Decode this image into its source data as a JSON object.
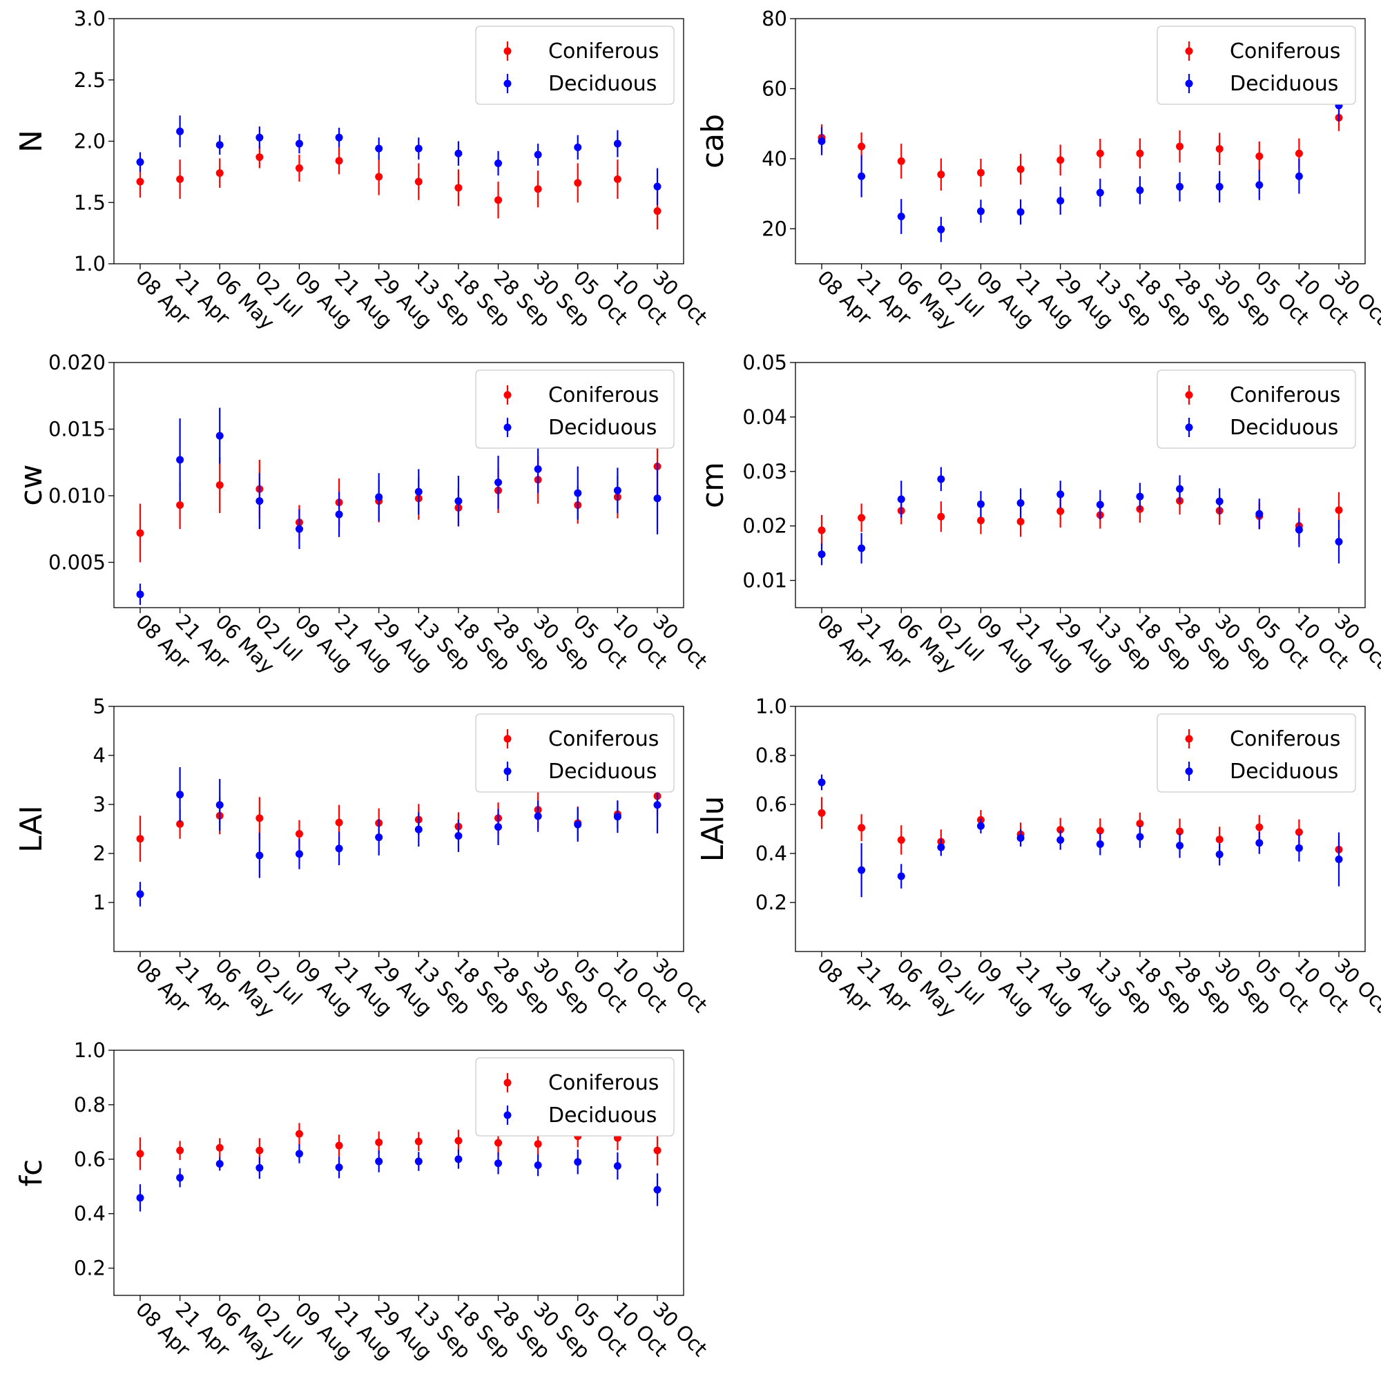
{
  "colors": {
    "coniferous": "#ff0000",
    "deciduous": "#0000ff"
  },
  "chart_data": [
    {
      "type": "scatter",
      "title": "",
      "xlabel": "",
      "ylabel": "N",
      "categories": [
        "08 Apr",
        "21 Apr",
        "06 May",
        "02 Jul",
        "09 Aug",
        "21 Aug",
        "29 Aug",
        "13 Sep",
        "18 Sep",
        "28 Sep",
        "30 Sep",
        "05 Oct",
        "10 Oct",
        "30 Oct"
      ],
      "ylim": [
        1.0,
        3.0
      ],
      "yticks": [
        1.0,
        1.5,
        2.0,
        2.5,
        3.0
      ],
      "ytick_labels": [
        "1.0",
        "1.5",
        "2.0",
        "2.5",
        "3.0"
      ],
      "legend": [
        "Coniferous",
        "Deciduous"
      ],
      "legend_position": "top-right",
      "series": [
        {
          "name": "Coniferous",
          "values": [
            1.67,
            1.69,
            1.74,
            1.87,
            1.78,
            1.84,
            1.71,
            1.67,
            1.62,
            1.52,
            1.61,
            1.66,
            1.69,
            1.43
          ],
          "errors": [
            0.13,
            0.16,
            0.12,
            0.09,
            0.11,
            0.11,
            0.15,
            0.15,
            0.15,
            0.15,
            0.15,
            0.16,
            0.16,
            0.15
          ]
        },
        {
          "name": "Deciduous",
          "values": [
            1.83,
            2.08,
            1.97,
            2.03,
            1.98,
            2.03,
            1.94,
            1.94,
            1.9,
            1.82,
            1.89,
            1.95,
            1.98,
            1.63
          ],
          "errors": [
            0.08,
            0.13,
            0.08,
            0.09,
            0.08,
            0.08,
            0.09,
            0.09,
            0.1,
            0.1,
            0.09,
            0.1,
            0.11,
            0.15
          ]
        }
      ]
    },
    {
      "type": "scatter",
      "title": "",
      "xlabel": "",
      "ylabel": "cab",
      "categories": [
        "08 Apr",
        "21 Apr",
        "06 May",
        "02 Jul",
        "09 Aug",
        "21 Aug",
        "29 Aug",
        "13 Sep",
        "18 Sep",
        "28 Sep",
        "30 Sep",
        "05 Oct",
        "10 Oct",
        "30 Oct"
      ],
      "ylim": [
        10,
        80
      ],
      "yticks": [
        20,
        40,
        60,
        80
      ],
      "ytick_labels": [
        "20",
        "40",
        "60",
        "80"
      ],
      "legend": [
        "Coniferous",
        "Deciduous"
      ],
      "legend_position": "top-right",
      "series": [
        {
          "name": "Coniferous",
          "values": [
            46.0,
            43.5,
            39.3,
            35.5,
            36.0,
            37.0,
            39.6,
            41.5,
            41.5,
            43.5,
            42.8,
            40.7,
            41.5,
            51.7
          ],
          "errors": [
            3.8,
            4.0,
            5.0,
            4.6,
            4.0,
            4.4,
            4.4,
            4.2,
            4.3,
            4.6,
            4.6,
            4.2,
            4.3,
            3.8
          ]
        },
        {
          "name": "Deciduous",
          "values": [
            45.0,
            35.0,
            23.5,
            19.8,
            25.0,
            24.8,
            28.0,
            30.3,
            31.0,
            32.0,
            32.0,
            32.5,
            35.0,
            55.2
          ],
          "errors": [
            4.0,
            6.0,
            5.0,
            3.6,
            3.3,
            3.6,
            4.0,
            4.0,
            4.0,
            4.2,
            4.5,
            4.3,
            5.0,
            4.5
          ]
        }
      ]
    },
    {
      "type": "scatter",
      "title": "",
      "xlabel": "",
      "ylabel": "cw",
      "categories": [
        "08 Apr",
        "21 Apr",
        "06 May",
        "02 Jul",
        "09 Aug",
        "21 Aug",
        "29 Aug",
        "13 Sep",
        "18 Sep",
        "28 Sep",
        "30 Sep",
        "05 Oct",
        "10 Oct",
        "30 Oct"
      ],
      "ylim": [
        0.0016,
        0.02
      ],
      "yticks": [
        0.005,
        0.01,
        0.015,
        0.02
      ],
      "ytick_labels": [
        "0.005",
        "0.010",
        "0.015",
        "0.020"
      ],
      "legend": [
        "Coniferous",
        "Deciduous"
      ],
      "legend_position": "top-right",
      "series": [
        {
          "name": "Coniferous",
          "values": [
            0.0072,
            0.0093,
            0.0108,
            0.0105,
            0.008,
            0.0095,
            0.0096,
            0.0098,
            0.0091,
            0.0104,
            0.0112,
            0.0093,
            0.0099,
            0.0122
          ],
          "errors": [
            0.0022,
            0.0018,
            0.0021,
            0.0022,
            0.0013,
            0.0018,
            0.0016,
            0.0016,
            0.0014,
            0.0017,
            0.0018,
            0.0014,
            0.0016,
            0.0022
          ]
        },
        {
          "name": "Deciduous",
          "values": [
            0.0026,
            0.0127,
            0.0145,
            0.0096,
            0.0075,
            0.0086,
            0.0099,
            0.0103,
            0.0096,
            0.011,
            0.012,
            0.0102,
            0.0104,
            0.0098
          ],
          "errors": [
            0.0008,
            0.0031,
            0.0021,
            0.0021,
            0.0015,
            0.0017,
            0.0018,
            0.0017,
            0.0019,
            0.002,
            0.0018,
            0.002,
            0.0017,
            0.0027
          ]
        }
      ]
    },
    {
      "type": "scatter",
      "title": "",
      "xlabel": "",
      "ylabel": "cm",
      "categories": [
        "08 Apr",
        "21 Apr",
        "06 May",
        "02 Jul",
        "09 Aug",
        "21 Aug",
        "29 Aug",
        "13 Sep",
        "18 Sep",
        "28 Sep",
        "30 Sep",
        "05 Oct",
        "10 Oct",
        "30 Oct"
      ],
      "ylim": [
        0.005,
        0.05
      ],
      "yticks": [
        0.01,
        0.02,
        0.03,
        0.04,
        0.05
      ],
      "ytick_labels": [
        "0.01",
        "0.02",
        "0.03",
        "0.04",
        "0.05"
      ],
      "legend": [
        "Coniferous",
        "Deciduous"
      ],
      "legend_position": "top-right",
      "series": [
        {
          "name": "Coniferous",
          "values": [
            0.0192,
            0.0215,
            0.0228,
            0.0217,
            0.021,
            0.0208,
            0.0227,
            0.022,
            0.0231,
            0.0246,
            0.0228,
            0.0218,
            0.02,
            0.0229
          ],
          "errors": [
            0.0028,
            0.0026,
            0.0025,
            0.0028,
            0.0025,
            0.0028,
            0.003,
            0.0025,
            0.0025,
            0.0025,
            0.0026,
            0.0024,
            0.0033,
            0.0033
          ]
        },
        {
          "name": "Deciduous",
          "values": [
            0.0148,
            0.0159,
            0.0249,
            0.0286,
            0.024,
            0.0242,
            0.0258,
            0.0239,
            0.0254,
            0.0268,
            0.0245,
            0.0222,
            0.0193,
            0.0171
          ],
          "errors": [
            0.002,
            0.0028,
            0.0034,
            0.0022,
            0.0024,
            0.0027,
            0.0025,
            0.0027,
            0.0025,
            0.0025,
            0.0024,
            0.0028,
            0.0032,
            0.004
          ]
        }
      ]
    },
    {
      "type": "scatter",
      "title": "",
      "xlabel": "",
      "ylabel": "LAI",
      "categories": [
        "08 Apr",
        "21 Apr",
        "06 May",
        "02 Jul",
        "09 Aug",
        "21 Aug",
        "29 Aug",
        "13 Sep",
        "18 Sep",
        "28 Sep",
        "30 Sep",
        "05 Oct",
        "10 Oct",
        "30 Oct"
      ],
      "ylim": [
        0.0,
        5.0
      ],
      "yticks": [
        1,
        2,
        3,
        4,
        5
      ],
      "ytick_labels": [
        "1",
        "2",
        "3",
        "4",
        "5"
      ],
      "legend": [
        "Coniferous",
        "Deciduous"
      ],
      "legend_position": "top-right",
      "series": [
        {
          "name": "Coniferous",
          "values": [
            2.3,
            2.6,
            2.77,
            2.72,
            2.4,
            2.63,
            2.62,
            2.69,
            2.55,
            2.72,
            2.89,
            2.62,
            2.8,
            3.17
          ],
          "errors": [
            0.47,
            0.3,
            0.38,
            0.43,
            0.28,
            0.36,
            0.3,
            0.32,
            0.29,
            0.32,
            0.37,
            0.34,
            0.28,
            0.38
          ]
        },
        {
          "name": "Deciduous",
          "values": [
            1.17,
            3.2,
            2.99,
            1.96,
            1.99,
            2.1,
            2.33,
            2.49,
            2.36,
            2.54,
            2.76,
            2.59,
            2.75,
            2.99
          ],
          "errors": [
            0.25,
            0.56,
            0.53,
            0.46,
            0.31,
            0.34,
            0.37,
            0.35,
            0.33,
            0.37,
            0.32,
            0.35,
            0.33,
            0.58
          ]
        }
      ]
    },
    {
      "type": "scatter",
      "title": "",
      "xlabel": "",
      "ylabel": "LAlu",
      "categories": [
        "08 Apr",
        "21 Apr",
        "06 May",
        "02 Jul",
        "09 Aug",
        "21 Aug",
        "29 Aug",
        "13 Sep",
        "18 Sep",
        "28 Sep",
        "30 Sep",
        "05 Oct",
        "10 Oct",
        "30 Oct"
      ],
      "ylim": [
        0.0,
        1.0
      ],
      "yticks": [
        0.2,
        0.4,
        0.6,
        0.8,
        1.0
      ],
      "ytick_labels": [
        "0.2",
        "0.4",
        "0.6",
        "0.8",
        "1.0"
      ],
      "legend": [
        "Coniferous",
        "Deciduous"
      ],
      "legend_position": "top-right",
      "series": [
        {
          "name": "Coniferous",
          "values": [
            0.565,
            0.505,
            0.455,
            0.448,
            0.537,
            0.478,
            0.497,
            0.493,
            0.522,
            0.49,
            0.457,
            0.507,
            0.487,
            0.416
          ],
          "errors": [
            0.065,
            0.055,
            0.06,
            0.05,
            0.04,
            0.048,
            0.048,
            0.05,
            0.045,
            0.052,
            0.052,
            0.05,
            0.052,
            0.055
          ]
        },
        {
          "name": "Deciduous",
          "values": [
            0.69,
            0.332,
            0.307,
            0.425,
            0.512,
            0.463,
            0.455,
            0.438,
            0.468,
            0.432,
            0.396,
            0.443,
            0.422,
            0.376
          ],
          "errors": [
            0.032,
            0.11,
            0.05,
            0.035,
            0.03,
            0.035,
            0.04,
            0.045,
            0.045,
            0.05,
            0.045,
            0.045,
            0.055,
            0.11
          ]
        }
      ]
    },
    {
      "type": "scatter",
      "title": "",
      "xlabel": "",
      "ylabel": "fc",
      "categories": [
        "08 Apr",
        "21 Apr",
        "06 May",
        "02 Jul",
        "09 Aug",
        "21 Aug",
        "29 Aug",
        "13 Sep",
        "18 Sep",
        "28 Sep",
        "30 Sep",
        "05 Oct",
        "10 Oct",
        "30 Oct"
      ],
      "ylim": [
        0.1,
        1.0
      ],
      "yticks": [
        0.2,
        0.4,
        0.6,
        0.8,
        1.0
      ],
      "ytick_labels": [
        "0.2",
        "0.4",
        "0.6",
        "0.8",
        "1.0"
      ],
      "legend": [
        "Coniferous",
        "Deciduous"
      ],
      "legend_position": "top-right",
      "series": [
        {
          "name": "Coniferous",
          "values": [
            0.62,
            0.632,
            0.642,
            0.632,
            0.693,
            0.65,
            0.662,
            0.665,
            0.668,
            0.66,
            0.656,
            0.684,
            0.678,
            0.632
          ],
          "errors": [
            0.06,
            0.035,
            0.035,
            0.045,
            0.04,
            0.04,
            0.04,
            0.035,
            0.04,
            0.045,
            0.04,
            0.04,
            0.045,
            0.055
          ]
        },
        {
          "name": "Deciduous",
          "values": [
            0.458,
            0.532,
            0.583,
            0.568,
            0.62,
            0.57,
            0.592,
            0.592,
            0.6,
            0.585,
            0.578,
            0.59,
            0.575,
            0.488
          ],
          "errors": [
            0.05,
            0.035,
            0.025,
            0.04,
            0.035,
            0.04,
            0.04,
            0.035,
            0.035,
            0.04,
            0.04,
            0.045,
            0.05,
            0.06
          ]
        }
      ]
    }
  ]
}
